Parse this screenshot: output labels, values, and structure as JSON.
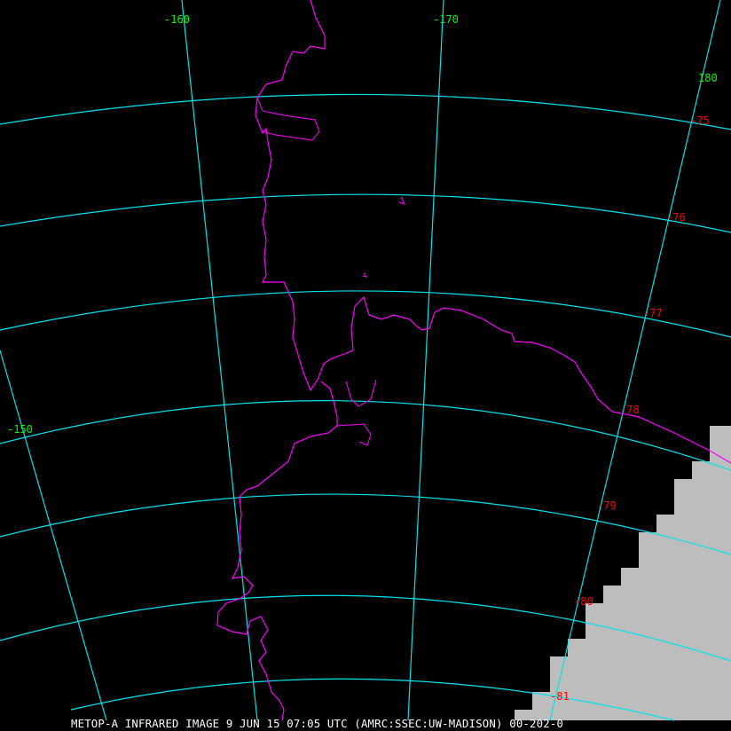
{
  "caption": "METOP-A INFRARED IMAGE 9 JUN 15 07:05 UTC (AMRC:SSEC:UW-MADISON) 00-202-0",
  "colors": {
    "grid": "#00e5ee",
    "coastline": "#ff00ff",
    "lon_label": "#00ff00",
    "lat_label": "#ff0000",
    "ice": "#c0c0c0"
  },
  "longitude_labels": [
    "-160",
    "-170",
    "180",
    "-150"
  ],
  "latitude_labels": [
    "-75",
    "-76",
    "-77",
    "-78",
    "-79",
    "-80",
    "-81"
  ]
}
